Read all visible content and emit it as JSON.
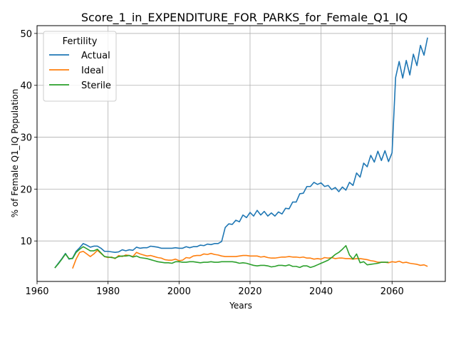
{
  "chart_data": {
    "type": "line",
    "title": "Score_1_in_EXPENDITURE_FOR_PARKS_for_Female_Q1_IQ",
    "xlabel": "Years",
    "ylabel": "% of Female Q1_IQ Population",
    "xlim": [
      1960,
      2075
    ],
    "ylim": [
      2.2,
      51.5
    ],
    "xticks": [
      1960,
      1980,
      2000,
      2020,
      2040,
      2060
    ],
    "yticks": [
      10,
      20,
      30,
      40,
      50
    ],
    "grid": true,
    "legend": {
      "title": "Fertility",
      "placement": "top-left"
    },
    "series": [
      {
        "name": "Actual",
        "color": "#1f77b4",
        "points": [
          [
            1965,
            4.8
          ],
          [
            1966,
            5.7
          ],
          [
            1967,
            6.6
          ],
          [
            1968,
            7.6
          ],
          [
            1969,
            6.5
          ],
          [
            1970,
            6.7
          ],
          [
            1971,
            8.0
          ],
          [
            1972,
            8.7
          ],
          [
            1973,
            9.5
          ],
          [
            1974,
            9.2
          ],
          [
            1975,
            8.8
          ],
          [
            1976,
            9.0
          ],
          [
            1977,
            9.0
          ],
          [
            1978,
            8.6
          ],
          [
            1979,
            8.0
          ],
          [
            1980,
            8.0
          ],
          [
            1981,
            7.9
          ],
          [
            1982,
            7.8
          ],
          [
            1983,
            7.9
          ],
          [
            1984,
            8.3
          ],
          [
            1985,
            8.1
          ],
          [
            1986,
            8.3
          ],
          [
            1987,
            8.2
          ],
          [
            1988,
            8.8
          ],
          [
            1989,
            8.6
          ],
          [
            1990,
            8.7
          ],
          [
            1991,
            8.7
          ],
          [
            1992,
            9.0
          ],
          [
            1993,
            8.9
          ],
          [
            1994,
            8.8
          ],
          [
            1995,
            8.6
          ],
          [
            1996,
            8.6
          ],
          [
            1997,
            8.6
          ],
          [
            1998,
            8.6
          ],
          [
            1999,
            8.7
          ],
          [
            2000,
            8.6
          ],
          [
            2001,
            8.6
          ],
          [
            2002,
            8.9
          ],
          [
            2003,
            8.7
          ],
          [
            2004,
            8.9
          ],
          [
            2005,
            8.9
          ],
          [
            2006,
            9.2
          ],
          [
            2007,
            9.1
          ],
          [
            2008,
            9.4
          ],
          [
            2009,
            9.3
          ],
          [
            2010,
            9.5
          ],
          [
            2011,
            9.5
          ],
          [
            2012,
            9.9
          ],
          [
            2013,
            12.6
          ],
          [
            2014,
            13.3
          ],
          [
            2015,
            13.2
          ],
          [
            2016,
            14.0
          ],
          [
            2017,
            13.7
          ],
          [
            2018,
            15.0
          ],
          [
            2019,
            14.5
          ],
          [
            2020,
            15.5
          ],
          [
            2021,
            14.8
          ],
          [
            2022,
            15.9
          ],
          [
            2023,
            15.0
          ],
          [
            2024,
            15.7
          ],
          [
            2025,
            14.8
          ],
          [
            2026,
            15.4
          ],
          [
            2027,
            14.8
          ],
          [
            2028,
            15.6
          ],
          [
            2029,
            15.2
          ],
          [
            2030,
            16.3
          ],
          [
            2031,
            16.2
          ],
          [
            2032,
            17.5
          ],
          [
            2033,
            17.5
          ],
          [
            2034,
            19.1
          ],
          [
            2035,
            19.2
          ],
          [
            2036,
            20.5
          ],
          [
            2037,
            20.5
          ],
          [
            2038,
            21.3
          ],
          [
            2039,
            20.9
          ],
          [
            2040,
            21.2
          ],
          [
            2041,
            20.5
          ],
          [
            2042,
            20.7
          ],
          [
            2043,
            19.9
          ],
          [
            2044,
            20.3
          ],
          [
            2045,
            19.5
          ],
          [
            2046,
            20.4
          ],
          [
            2047,
            19.8
          ],
          [
            2048,
            21.3
          ],
          [
            2049,
            20.7
          ],
          [
            2050,
            23.1
          ],
          [
            2051,
            22.3
          ],
          [
            2052,
            25.0
          ],
          [
            2053,
            24.3
          ],
          [
            2054,
            26.5
          ],
          [
            2055,
            25.2
          ],
          [
            2056,
            27.3
          ],
          [
            2057,
            25.5
          ],
          [
            2058,
            27.4
          ],
          [
            2059,
            25.3
          ],
          [
            2060,
            27.0
          ],
          [
            2061,
            41.5
          ],
          [
            2062,
            44.6
          ],
          [
            2063,
            41.4
          ],
          [
            2064,
            44.8
          ],
          [
            2065,
            42.0
          ],
          [
            2066,
            46.0
          ],
          [
            2067,
            43.8
          ],
          [
            2068,
            47.7
          ],
          [
            2069,
            45.8
          ],
          [
            2070,
            49.2
          ]
        ]
      },
      {
        "name": "Ideal",
        "color": "#ff7f0e",
        "points": [
          [
            1970,
            4.7
          ],
          [
            1971,
            6.5
          ],
          [
            1972,
            7.8
          ],
          [
            1973,
            8.0
          ],
          [
            1974,
            7.5
          ],
          [
            1975,
            7.0
          ],
          [
            1976,
            7.5
          ],
          [
            1977,
            8.2
          ],
          [
            1978,
            7.6
          ],
          [
            1979,
            7.0
          ],
          [
            1980,
            6.8
          ],
          [
            1981,
            6.9
          ],
          [
            1982,
            6.6
          ],
          [
            1983,
            7.2
          ],
          [
            1984,
            7.0
          ],
          [
            1985,
            7.3
          ],
          [
            1986,
            7.2
          ],
          [
            1987,
            7.0
          ],
          [
            1988,
            7.8
          ],
          [
            1989,
            7.5
          ],
          [
            1990,
            7.3
          ],
          [
            1991,
            7.1
          ],
          [
            1992,
            7.2
          ],
          [
            1993,
            7.0
          ],
          [
            1994,
            6.8
          ],
          [
            1995,
            6.7
          ],
          [
            1996,
            6.4
          ],
          [
            1997,
            6.3
          ],
          [
            1998,
            6.3
          ],
          [
            1999,
            6.5
          ],
          [
            2000,
            6.2
          ],
          [
            2001,
            6.3
          ],
          [
            2002,
            6.8
          ],
          [
            2003,
            6.7
          ],
          [
            2004,
            7.1
          ],
          [
            2005,
            7.2
          ],
          [
            2006,
            7.2
          ],
          [
            2007,
            7.5
          ],
          [
            2008,
            7.4
          ],
          [
            2009,
            7.6
          ],
          [
            2010,
            7.4
          ],
          [
            2011,
            7.3
          ],
          [
            2012,
            7.1
          ],
          [
            2013,
            7.0
          ],
          [
            2014,
            7.0
          ],
          [
            2015,
            7.0
          ],
          [
            2016,
            7.0
          ],
          [
            2017,
            7.1
          ],
          [
            2018,
            7.2
          ],
          [
            2019,
            7.2
          ],
          [
            2020,
            7.1
          ],
          [
            2021,
            7.1
          ],
          [
            2022,
            7.1
          ],
          [
            2023,
            6.9
          ],
          [
            2024,
            7.0
          ],
          [
            2025,
            6.8
          ],
          [
            2026,
            6.7
          ],
          [
            2027,
            6.7
          ],
          [
            2028,
            6.8
          ],
          [
            2029,
            6.9
          ],
          [
            2030,
            6.9
          ],
          [
            2031,
            7.0
          ],
          [
            2032,
            6.9
          ],
          [
            2033,
            6.9
          ],
          [
            2034,
            6.8
          ],
          [
            2035,
            6.9
          ],
          [
            2036,
            6.7
          ],
          [
            2037,
            6.7
          ],
          [
            2038,
            6.5
          ],
          [
            2039,
            6.6
          ],
          [
            2040,
            6.5
          ],
          [
            2041,
            6.8
          ],
          [
            2042,
            6.7
          ],
          [
            2043,
            6.8
          ],
          [
            2044,
            6.6
          ],
          [
            2045,
            6.7
          ],
          [
            2046,
            6.7
          ],
          [
            2047,
            6.6
          ],
          [
            2048,
            6.6
          ],
          [
            2049,
            6.5
          ],
          [
            2050,
            6.6
          ],
          [
            2051,
            6.6
          ],
          [
            2052,
            6.5
          ],
          [
            2053,
            6.4
          ],
          [
            2054,
            6.2
          ],
          [
            2055,
            6.1
          ],
          [
            2056,
            5.9
          ],
          [
            2057,
            5.9
          ],
          [
            2058,
            5.9
          ],
          [
            2059,
            5.8
          ],
          [
            2060,
            6.0
          ],
          [
            2061,
            5.9
          ],
          [
            2062,
            6.1
          ],
          [
            2063,
            5.8
          ],
          [
            2064,
            5.9
          ],
          [
            2065,
            5.7
          ],
          [
            2066,
            5.6
          ],
          [
            2067,
            5.5
          ],
          [
            2068,
            5.3
          ],
          [
            2069,
            5.4
          ],
          [
            2070,
            5.1
          ]
        ]
      },
      {
        "name": "Sterile",
        "color": "#2ca02c",
        "points": [
          [
            1965,
            4.8
          ],
          [
            1966,
            5.6
          ],
          [
            1967,
            6.5
          ],
          [
            1968,
            7.5
          ],
          [
            1969,
            6.6
          ],
          [
            1970,
            6.6
          ],
          [
            1971,
            7.8
          ],
          [
            1972,
            8.4
          ],
          [
            1973,
            8.9
          ],
          [
            1974,
            8.5
          ],
          [
            1975,
            8.1
          ],
          [
            1976,
            8.1
          ],
          [
            1977,
            8.4
          ],
          [
            1978,
            7.7
          ],
          [
            1979,
            7.0
          ],
          [
            1980,
            6.9
          ],
          [
            1981,
            6.8
          ],
          [
            1982,
            6.7
          ],
          [
            1983,
            7.0
          ],
          [
            1984,
            7.1
          ],
          [
            1985,
            7.1
          ],
          [
            1986,
            7.2
          ],
          [
            1987,
            6.9
          ],
          [
            1988,
            7.1
          ],
          [
            1989,
            6.8
          ],
          [
            1990,
            6.7
          ],
          [
            1991,
            6.6
          ],
          [
            1992,
            6.4
          ],
          [
            1993,
            6.2
          ],
          [
            1994,
            6.0
          ],
          [
            1995,
            5.9
          ],
          [
            1996,
            5.8
          ],
          [
            1997,
            5.8
          ],
          [
            1998,
            5.7
          ],
          [
            1999,
            6.0
          ],
          [
            2000,
            6.0
          ],
          [
            2001,
            5.9
          ],
          [
            2002,
            5.9
          ],
          [
            2003,
            6.0
          ],
          [
            2004,
            6.0
          ],
          [
            2005,
            5.9
          ],
          [
            2006,
            5.8
          ],
          [
            2007,
            5.9
          ],
          [
            2008,
            5.9
          ],
          [
            2009,
            6.0
          ],
          [
            2010,
            5.9
          ],
          [
            2011,
            5.9
          ],
          [
            2012,
            6.0
          ],
          [
            2013,
            6.0
          ],
          [
            2014,
            6.0
          ],
          [
            2015,
            6.0
          ],
          [
            2016,
            5.9
          ],
          [
            2017,
            5.7
          ],
          [
            2018,
            5.8
          ],
          [
            2019,
            5.7
          ],
          [
            2020,
            5.5
          ],
          [
            2021,
            5.3
          ],
          [
            2022,
            5.2
          ],
          [
            2023,
            5.3
          ],
          [
            2024,
            5.3
          ],
          [
            2025,
            5.2
          ],
          [
            2026,
            5.0
          ],
          [
            2027,
            5.1
          ],
          [
            2028,
            5.3
          ],
          [
            2029,
            5.3
          ],
          [
            2030,
            5.2
          ],
          [
            2031,
            5.4
          ],
          [
            2032,
            5.1
          ],
          [
            2033,
            5.1
          ],
          [
            2034,
            4.9
          ],
          [
            2035,
            5.2
          ],
          [
            2036,
            5.2
          ],
          [
            2037,
            4.9
          ],
          [
            2038,
            5.1
          ],
          [
            2039,
            5.4
          ],
          [
            2040,
            5.7
          ],
          [
            2041,
            6.0
          ],
          [
            2042,
            6.3
          ],
          [
            2043,
            6.8
          ],
          [
            2044,
            7.4
          ],
          [
            2045,
            7.8
          ],
          [
            2046,
            8.4
          ],
          [
            2047,
            9.1
          ],
          [
            2048,
            7.3
          ],
          [
            2049,
            6.5
          ],
          [
            2050,
            7.5
          ],
          [
            2051,
            5.8
          ],
          [
            2052,
            6.0
          ],
          [
            2053,
            5.4
          ],
          [
            2054,
            5.5
          ],
          [
            2055,
            5.6
          ],
          [
            2056,
            5.7
          ],
          [
            2057,
            5.9
          ],
          [
            2058,
            5.9
          ],
          [
            2059,
            5.9
          ]
        ]
      }
    ]
  }
}
